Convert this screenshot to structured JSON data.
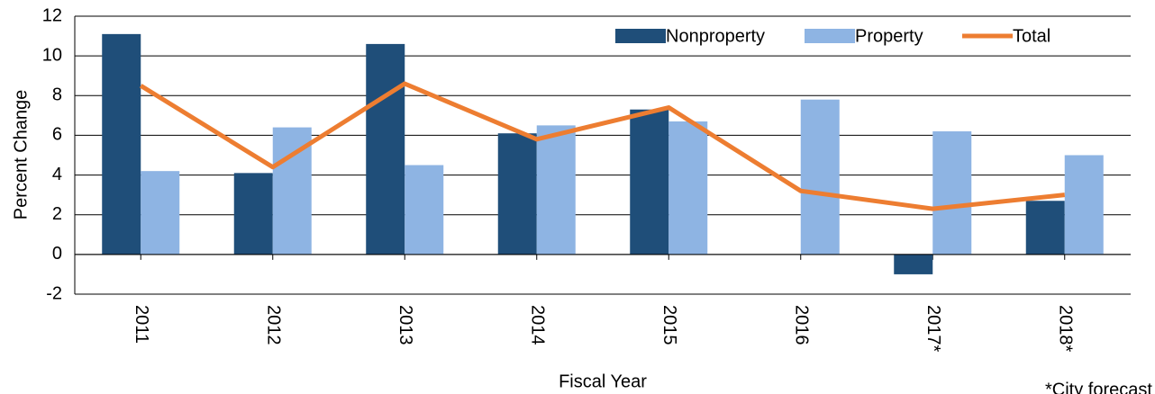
{
  "chart_data": {
    "type": "bar_line",
    "x_label": "Fiscal Year",
    "y_label": "Percent Change",
    "note": "*City forecast",
    "categories": [
      "2011",
      "2012",
      "2013",
      "2014",
      "2015",
      "2016",
      "2017*",
      "2018*"
    ],
    "series": [
      {
        "name": "Nonproperty",
        "type": "bar",
        "color": "#1f4e79",
        "values": [
          11.1,
          4.1,
          10.6,
          6.1,
          7.3,
          0,
          -1.0,
          2.7
        ]
      },
      {
        "name": "Property",
        "type": "bar",
        "color": "#8eb4e3",
        "values": [
          4.2,
          6.4,
          4.5,
          6.5,
          6.7,
          7.8,
          6.2,
          5.0
        ]
      },
      {
        "name": "Total",
        "type": "line",
        "color": "#ed7d31",
        "values": [
          8.5,
          4.4,
          8.6,
          5.8,
          7.4,
          3.2,
          2.3,
          3.0
        ]
      }
    ],
    "ylim": [
      -2,
      12
    ],
    "yticks": [
      -2,
      0,
      2,
      4,
      6,
      8,
      10,
      12
    ],
    "grid": true,
    "legend": "top-right"
  }
}
